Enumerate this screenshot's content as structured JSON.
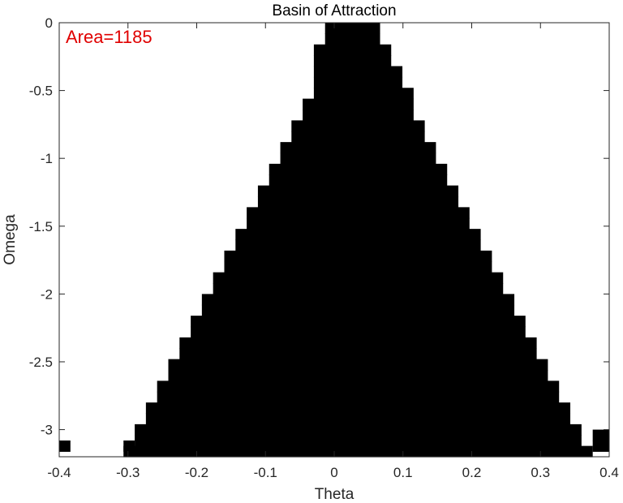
{
  "chart_data": {
    "type": "heatmap",
    "title": "Basin of Attraction",
    "xlabel": "Theta",
    "ylabel": "Omega",
    "xlim": [
      -0.4,
      0.4
    ],
    "ylim": [
      -3.2,
      0
    ],
    "x_ticks": [
      -0.4,
      -0.3,
      -0.2,
      -0.1,
      0,
      0.1,
      0.2,
      0.3,
      0.4
    ],
    "x_tick_labels": [
      "-0.4",
      "-0.3",
      "-0.2",
      "-0.1",
      "0",
      "0.1",
      "0.2",
      "0.3",
      "0.4"
    ],
    "y_ticks": [
      0,
      -0.5,
      -1,
      -1.5,
      -2,
      -2.5,
      -3
    ],
    "y_tick_labels": [
      "0",
      "-0.5",
      "-1",
      "-1.5",
      "-2",
      "-2.5",
      "-3"
    ],
    "grid": false,
    "annotation": {
      "text": "Area=1185",
      "color": "#e00000",
      "position": "top-left"
    },
    "fill_color": "#000000",
    "background_color": "#ffffff",
    "cell_width": 0.01627,
    "cell_height": 0.08,
    "region_rows": [
      {
        "omega": -0.04,
        "theta_min": -0.0133,
        "theta_max": 0.0667
      },
      {
        "omega": -0.12,
        "theta_min": -0.0133,
        "theta_max": 0.0667
      },
      {
        "omega": -0.2,
        "theta_min": -0.0296,
        "theta_max": 0.0829
      },
      {
        "omega": -0.28,
        "theta_min": -0.0296,
        "theta_max": 0.0829
      },
      {
        "omega": -0.36,
        "theta_min": -0.0296,
        "theta_max": 0.0992
      },
      {
        "omega": -0.44,
        "theta_min": -0.0296,
        "theta_max": 0.0992
      },
      {
        "omega": -0.52,
        "theta_min": -0.0296,
        "theta_max": 0.1155
      },
      {
        "omega": -0.6,
        "theta_min": -0.0459,
        "theta_max": 0.1155
      },
      {
        "omega": -0.68,
        "theta_min": -0.0459,
        "theta_max": 0.1155
      },
      {
        "omega": -0.76,
        "theta_min": -0.0622,
        "theta_max": 0.1317
      },
      {
        "omega": -0.84,
        "theta_min": -0.0622,
        "theta_max": 0.1317
      },
      {
        "omega": -0.92,
        "theta_min": -0.0784,
        "theta_max": 0.148
      },
      {
        "omega": -1.0,
        "theta_min": -0.0784,
        "theta_max": 0.148
      },
      {
        "omega": -1.08,
        "theta_min": -0.0947,
        "theta_max": 0.1643
      },
      {
        "omega": -1.16,
        "theta_min": -0.0947,
        "theta_max": 0.1643
      },
      {
        "omega": -1.24,
        "theta_min": -0.111,
        "theta_max": 0.1806
      },
      {
        "omega": -1.32,
        "theta_min": -0.111,
        "theta_max": 0.1806
      },
      {
        "omega": -1.4,
        "theta_min": -0.1273,
        "theta_max": 0.1968
      },
      {
        "omega": -1.48,
        "theta_min": -0.1273,
        "theta_max": 0.1968
      },
      {
        "omega": -1.56,
        "theta_min": -0.1436,
        "theta_max": 0.2131
      },
      {
        "omega": -1.64,
        "theta_min": -0.1436,
        "theta_max": 0.2131
      },
      {
        "omega": -1.72,
        "theta_min": -0.1599,
        "theta_max": 0.2294
      },
      {
        "omega": -1.8,
        "theta_min": -0.1599,
        "theta_max": 0.2294
      },
      {
        "omega": -1.88,
        "theta_min": -0.1762,
        "theta_max": 0.2457
      },
      {
        "omega": -1.96,
        "theta_min": -0.1762,
        "theta_max": 0.2457
      },
      {
        "omega": -2.04,
        "theta_min": -0.1925,
        "theta_max": 0.262
      },
      {
        "omega": -2.12,
        "theta_min": -0.1925,
        "theta_max": 0.262
      },
      {
        "omega": -2.2,
        "theta_min": -0.2087,
        "theta_max": 0.2782
      },
      {
        "omega": -2.28,
        "theta_min": -0.2087,
        "theta_max": 0.2782
      },
      {
        "omega": -2.36,
        "theta_min": -0.225,
        "theta_max": 0.2945
      },
      {
        "omega": -2.44,
        "theta_min": -0.225,
        "theta_max": 0.2945
      },
      {
        "omega": -2.52,
        "theta_min": -0.2413,
        "theta_max": 0.3108
      },
      {
        "omega": -2.6,
        "theta_min": -0.2413,
        "theta_max": 0.3108
      },
      {
        "omega": -2.68,
        "theta_min": -0.2576,
        "theta_max": 0.3271
      },
      {
        "omega": -2.76,
        "theta_min": -0.2576,
        "theta_max": 0.3271
      },
      {
        "omega": -2.84,
        "theta_min": -0.2739,
        "theta_max": 0.3434
      },
      {
        "omega": -2.92,
        "theta_min": -0.2739,
        "theta_max": 0.3434
      },
      {
        "omega": -3.0,
        "theta_min": -0.2902,
        "theta_max": 0.3597
      },
      {
        "omega": -3.08,
        "theta_min": -0.2902,
        "theta_max": 0.3597
      },
      {
        "omega": -3.16,
        "theta_min": -0.3065,
        "theta_max": 0.376
      }
    ],
    "extra_cells": [
      {
        "omega": -3.12,
        "omega_half": 0.04,
        "theta_min": -0.4,
        "theta_max": -0.3837
      },
      {
        "omega": -3.04,
        "omega_half": 0.04,
        "theta_min": 0.376,
        "theta_max": 0.4
      },
      {
        "omega": -3.12,
        "omega_half": 0.04,
        "theta_min": 0.376,
        "theta_max": 0.4
      },
      {
        "omega": -3.12,
        "omega_half": 0.04,
        "theta_min": -0.3065,
        "theta_max": -0.2902
      }
    ]
  }
}
